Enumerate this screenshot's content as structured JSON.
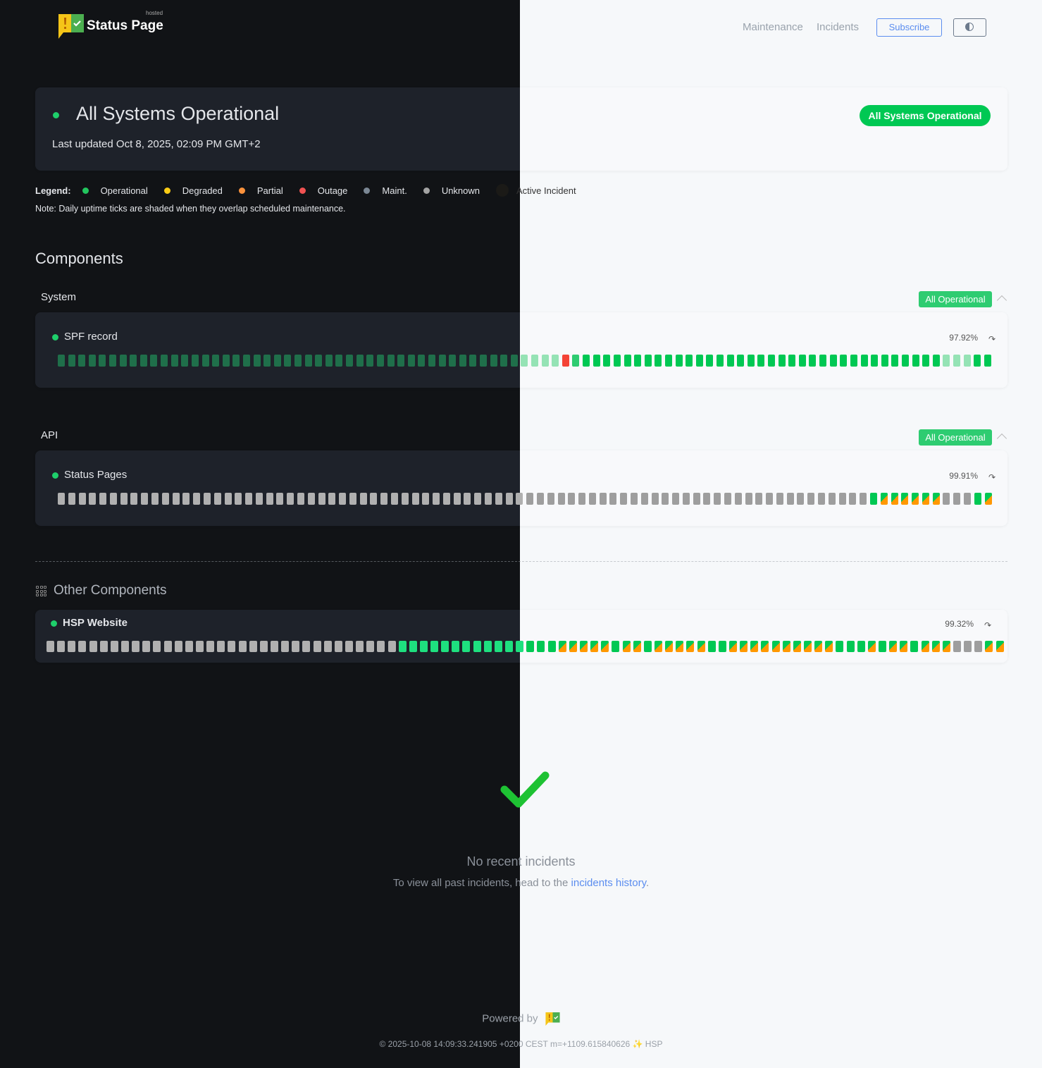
{
  "header": {
    "brand": "Status Page",
    "brand_sup": "hosted",
    "nav": [
      "Maintenance",
      "Incidents"
    ],
    "subscribe_label": "Subscribe",
    "theme_toggle_icon": "half-circle-contrast-icon"
  },
  "status": {
    "title": "All Systems Operational",
    "last_updated": "Last updated Oct 8, 2025, 02:09 PM GMT+2",
    "badge": "All Systems Operational"
  },
  "legend": {
    "label": "Legend:",
    "items": [
      {
        "label": "Operational",
        "color": "#22c55e"
      },
      {
        "label": "Degraded",
        "color": "#facc15"
      },
      {
        "label": "Partial",
        "color": "#fb923c"
      },
      {
        "label": "Outage",
        "color": "#f05252"
      },
      {
        "label": "Maint.",
        "color": "#7b8794"
      },
      {
        "label": "Unknown",
        "color": "#a3a3a3"
      },
      {
        "label": "Active Incident",
        "color": "#1b1a17"
      }
    ],
    "note": "Note: Daily uptime ticks are shaded when they overlap scheduled maintenance."
  },
  "components": {
    "title": "Components",
    "groups": [
      {
        "name": "System",
        "badge": "All Operational",
        "items": [
          {
            "name": "SPF record",
            "uptime": "97.92%",
            "ticks": "fffffffffffffffffffffffffffffffffffffffffffffffffrlgggggggggggggggggggggggggggggggggggfffgg"
          }
        ]
      },
      {
        "name": "API",
        "badge": "All Operational",
        "items": [
          {
            "name": "Status Pages",
            "uptime": "99.91%",
            "ticks": "uuuuuuuuuuuuuuuuuuuuuuuuuuuuuuuuuuuuuuuuuuuuuuuuuuuuuuuuuuuuuuuuuuuuuuuuuuuuuugssssssuuugs"
          }
        ]
      }
    ]
  },
  "other_components": {
    "title": "Other Components",
    "items": [
      {
        "name": "HSP Website",
        "uptime": "99.32%",
        "ticks": "uuuuuuuuuuuuuuuuuuuuuuuuuuuuuuuuugggggggggggggGGSSSSSGSSGSSSSSGGSSSSSSSSSSGGGSGSSGSSSUUUSS"
      }
    ]
  },
  "tick_colors": {
    "light": {
      "g": "#00c853",
      "f": "#95e3b5",
      "l": "#2ecc71",
      "r": "#f44336",
      "u": "#9e9e9e",
      "s": "stripe"
    },
    "dark": {
      "g": "#1ee07f",
      "f": "#1f6f4a",
      "l": "#2ecc71",
      "r": "#f44336",
      "u": "#b0b0b0",
      "s": "stripe"
    },
    "stripe_colors": [
      "#00c853",
      "#ff9800"
    ]
  },
  "incidents": {
    "empty_title": "No recent incidents",
    "empty_text": "To view all past incidents, head to the",
    "history_link": "incidents history",
    "period": "."
  },
  "footer": {
    "powered_by": "Powered by",
    "build_info": "© 2025-10-08 14:09:33.241905 +0200 CEST m=+1109.615840626 ✨ HSP"
  }
}
